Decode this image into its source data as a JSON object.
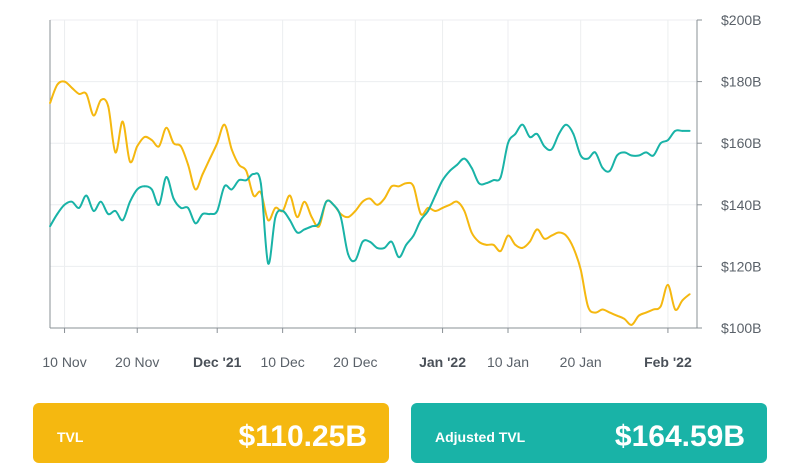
{
  "chart_data": {
    "type": "line",
    "title": "",
    "xlabel": "",
    "ylabel": "",
    "x_tick_labels": [
      {
        "label": "10 Nov",
        "date": "2021-11-10",
        "emphasis": false
      },
      {
        "label": "20 Nov",
        "date": "2021-11-20",
        "emphasis": false
      },
      {
        "label": "Dec '21",
        "date": "2021-12-01",
        "emphasis": true
      },
      {
        "label": "10 Dec",
        "date": "2021-12-10",
        "emphasis": false
      },
      {
        "label": "20 Dec",
        "date": "2021-12-20",
        "emphasis": false
      },
      {
        "label": "Jan '22",
        "date": "2022-01-01",
        "emphasis": true
      },
      {
        "label": "10 Jan",
        "date": "2022-01-10",
        "emphasis": false
      },
      {
        "label": "20 Jan",
        "date": "2022-01-20",
        "emphasis": false
      },
      {
        "label": "Feb '22",
        "date": "2022-02-01",
        "emphasis": true
      }
    ],
    "xlim": [
      "2021-11-08",
      "2022-02-05"
    ],
    "y_ticks": [
      100,
      120,
      140,
      160,
      180,
      200
    ],
    "y_tick_labels": [
      "$100B",
      "$120B",
      "$140B",
      "$160B",
      "$180B",
      "$200B"
    ],
    "ylim": [
      100,
      200
    ],
    "y_axis_side": "right",
    "grid": true,
    "series": [
      {
        "name": "TVL",
        "color": "#f5b810",
        "points": [
          [
            "2021-11-08",
            173
          ],
          [
            "2021-11-09",
            179
          ],
          [
            "2021-11-10",
            180
          ],
          [
            "2021-11-11",
            178
          ],
          [
            "2021-11-12",
            176
          ],
          [
            "2021-11-13",
            176
          ],
          [
            "2021-11-14",
            169
          ],
          [
            "2021-11-15",
            174
          ],
          [
            "2021-11-16",
            172
          ],
          [
            "2021-11-17",
            157
          ],
          [
            "2021-11-18",
            167
          ],
          [
            "2021-11-19",
            154
          ],
          [
            "2021-11-20",
            159
          ],
          [
            "2021-11-21",
            162
          ],
          [
            "2021-11-22",
            161
          ],
          [
            "2021-11-23",
            159
          ],
          [
            "2021-11-24",
            165
          ],
          [
            "2021-11-25",
            160
          ],
          [
            "2021-11-26",
            159
          ],
          [
            "2021-11-27",
            153
          ],
          [
            "2021-11-28",
            145
          ],
          [
            "2021-11-29",
            150
          ],
          [
            "2021-11-30",
            155
          ],
          [
            "2021-12-01",
            160
          ],
          [
            "2021-12-02",
            166
          ],
          [
            "2021-12-03",
            158
          ],
          [
            "2021-12-04",
            153
          ],
          [
            "2021-12-05",
            151
          ],
          [
            "2021-12-06",
            143
          ],
          [
            "2021-12-07",
            144
          ],
          [
            "2021-12-08",
            135
          ],
          [
            "2021-12-09",
            139
          ],
          [
            "2021-12-10",
            138
          ],
          [
            "2021-12-11",
            143
          ],
          [
            "2021-12-12",
            136
          ],
          [
            "2021-12-13",
            141
          ],
          [
            "2021-12-14",
            136
          ],
          [
            "2021-12-15",
            133
          ],
          [
            "2021-12-16",
            141
          ],
          [
            "2021-12-17",
            140
          ],
          [
            "2021-12-18",
            137
          ],
          [
            "2021-12-19",
            136
          ],
          [
            "2021-12-20",
            138
          ],
          [
            "2021-12-21",
            141
          ],
          [
            "2021-12-22",
            142
          ],
          [
            "2021-12-23",
            140
          ],
          [
            "2021-12-24",
            142
          ],
          [
            "2021-12-25",
            146
          ],
          [
            "2021-12-26",
            146
          ],
          [
            "2021-12-27",
            147
          ],
          [
            "2021-12-28",
            146
          ],
          [
            "2021-12-29",
            137
          ],
          [
            "2021-12-30",
            139
          ],
          [
            "2021-12-31",
            138
          ],
          [
            "2022-01-01",
            139
          ],
          [
            "2022-01-02",
            140
          ],
          [
            "2022-01-03",
            141
          ],
          [
            "2022-01-04",
            138
          ],
          [
            "2022-01-05",
            131
          ],
          [
            "2022-01-06",
            128
          ],
          [
            "2022-01-07",
            127
          ],
          [
            "2022-01-08",
            127
          ],
          [
            "2022-01-09",
            125
          ],
          [
            "2022-01-10",
            130
          ],
          [
            "2022-01-11",
            127
          ],
          [
            "2022-01-12",
            126
          ],
          [
            "2022-01-13",
            128
          ],
          [
            "2022-01-14",
            132
          ],
          [
            "2022-01-15",
            129
          ],
          [
            "2022-01-16",
            130
          ],
          [
            "2022-01-17",
            131
          ],
          [
            "2022-01-18",
            130
          ],
          [
            "2022-01-19",
            126
          ],
          [
            "2022-01-20",
            119
          ],
          [
            "2022-01-21",
            107
          ],
          [
            "2022-01-22",
            105
          ],
          [
            "2022-01-23",
            106
          ],
          [
            "2022-01-24",
            105
          ],
          [
            "2022-01-25",
            104
          ],
          [
            "2022-01-26",
            103
          ],
          [
            "2022-01-27",
            101
          ],
          [
            "2022-01-28",
            104
          ],
          [
            "2022-01-29",
            105
          ],
          [
            "2022-01-30",
            106
          ],
          [
            "2022-01-31",
            107
          ],
          [
            "2022-02-01",
            114
          ],
          [
            "2022-02-02",
            106
          ],
          [
            "2022-02-03",
            109
          ],
          [
            "2022-02-04",
            111
          ]
        ]
      },
      {
        "name": "Adjusted TVL",
        "color": "#19b3a7",
        "points": [
          [
            "2021-11-08",
            133
          ],
          [
            "2021-11-09",
            137
          ],
          [
            "2021-11-10",
            140
          ],
          [
            "2021-11-11",
            141
          ],
          [
            "2021-11-12",
            139
          ],
          [
            "2021-11-13",
            143
          ],
          [
            "2021-11-14",
            138
          ],
          [
            "2021-11-15",
            141
          ],
          [
            "2021-11-16",
            137
          ],
          [
            "2021-11-17",
            138
          ],
          [
            "2021-11-18",
            135
          ],
          [
            "2021-11-19",
            141
          ],
          [
            "2021-11-20",
            145
          ],
          [
            "2021-11-21",
            146
          ],
          [
            "2021-11-22",
            145
          ],
          [
            "2021-11-23",
            140
          ],
          [
            "2021-11-24",
            149
          ],
          [
            "2021-11-25",
            142
          ],
          [
            "2021-11-26",
            139
          ],
          [
            "2021-11-27",
            139
          ],
          [
            "2021-11-28",
            134
          ],
          [
            "2021-11-29",
            137
          ],
          [
            "2021-11-30",
            137
          ],
          [
            "2021-12-01",
            138
          ],
          [
            "2021-12-02",
            146
          ],
          [
            "2021-12-03",
            145
          ],
          [
            "2021-12-04",
            148
          ],
          [
            "2021-12-05",
            148
          ],
          [
            "2021-12-06",
            150
          ],
          [
            "2021-12-07",
            147
          ],
          [
            "2021-12-08",
            121
          ],
          [
            "2021-12-09",
            136
          ],
          [
            "2021-12-10",
            138
          ],
          [
            "2021-12-11",
            135
          ],
          [
            "2021-12-12",
            131
          ],
          [
            "2021-12-13",
            132
          ],
          [
            "2021-12-14",
            133
          ],
          [
            "2021-12-15",
            134
          ],
          [
            "2021-12-16",
            141
          ],
          [
            "2021-12-17",
            140
          ],
          [
            "2021-12-18",
            136
          ],
          [
            "2021-12-19",
            124
          ],
          [
            "2021-12-20",
            122
          ],
          [
            "2021-12-21",
            128
          ],
          [
            "2021-12-22",
            128
          ],
          [
            "2021-12-23",
            126
          ],
          [
            "2021-12-24",
            126
          ],
          [
            "2021-12-25",
            128
          ],
          [
            "2021-12-26",
            123
          ],
          [
            "2021-12-27",
            127
          ],
          [
            "2021-12-28",
            130
          ],
          [
            "2021-12-29",
            135
          ],
          [
            "2021-12-30",
            138
          ],
          [
            "2021-12-31",
            143
          ],
          [
            "2022-01-01",
            148
          ],
          [
            "2022-01-02",
            151
          ],
          [
            "2022-01-03",
            153
          ],
          [
            "2022-01-04",
            155
          ],
          [
            "2022-01-05",
            152
          ],
          [
            "2022-01-06",
            147
          ],
          [
            "2022-01-07",
            147
          ],
          [
            "2022-01-08",
            148
          ],
          [
            "2022-01-09",
            149
          ],
          [
            "2022-01-10",
            160
          ],
          [
            "2022-01-11",
            163
          ],
          [
            "2022-01-12",
            166
          ],
          [
            "2022-01-13",
            162
          ],
          [
            "2022-01-14",
            163
          ],
          [
            "2022-01-15",
            159
          ],
          [
            "2022-01-16",
            158
          ],
          [
            "2022-01-17",
            163
          ],
          [
            "2022-01-18",
            166
          ],
          [
            "2022-01-19",
            163
          ],
          [
            "2022-01-20",
            156
          ],
          [
            "2022-01-21",
            155
          ],
          [
            "2022-01-22",
            157
          ],
          [
            "2022-01-23",
            152
          ],
          [
            "2022-01-24",
            151
          ],
          [
            "2022-01-25",
            156
          ],
          [
            "2022-01-26",
            157
          ],
          [
            "2022-01-27",
            156
          ],
          [
            "2022-01-28",
            156
          ],
          [
            "2022-01-29",
            157
          ],
          [
            "2022-01-30",
            156
          ],
          [
            "2022-01-31",
            160
          ],
          [
            "2022-02-01",
            161
          ],
          [
            "2022-02-02",
            164
          ],
          [
            "2022-02-03",
            164
          ],
          [
            "2022-02-04",
            164
          ]
        ]
      }
    ]
  },
  "cards": {
    "tvl": {
      "label": "TVL",
      "value": "$110.25B",
      "color": "#f5b810"
    },
    "adjusted": {
      "label": "Adjusted TVL",
      "value": "$164.59B",
      "color": "#19b3a7"
    }
  }
}
